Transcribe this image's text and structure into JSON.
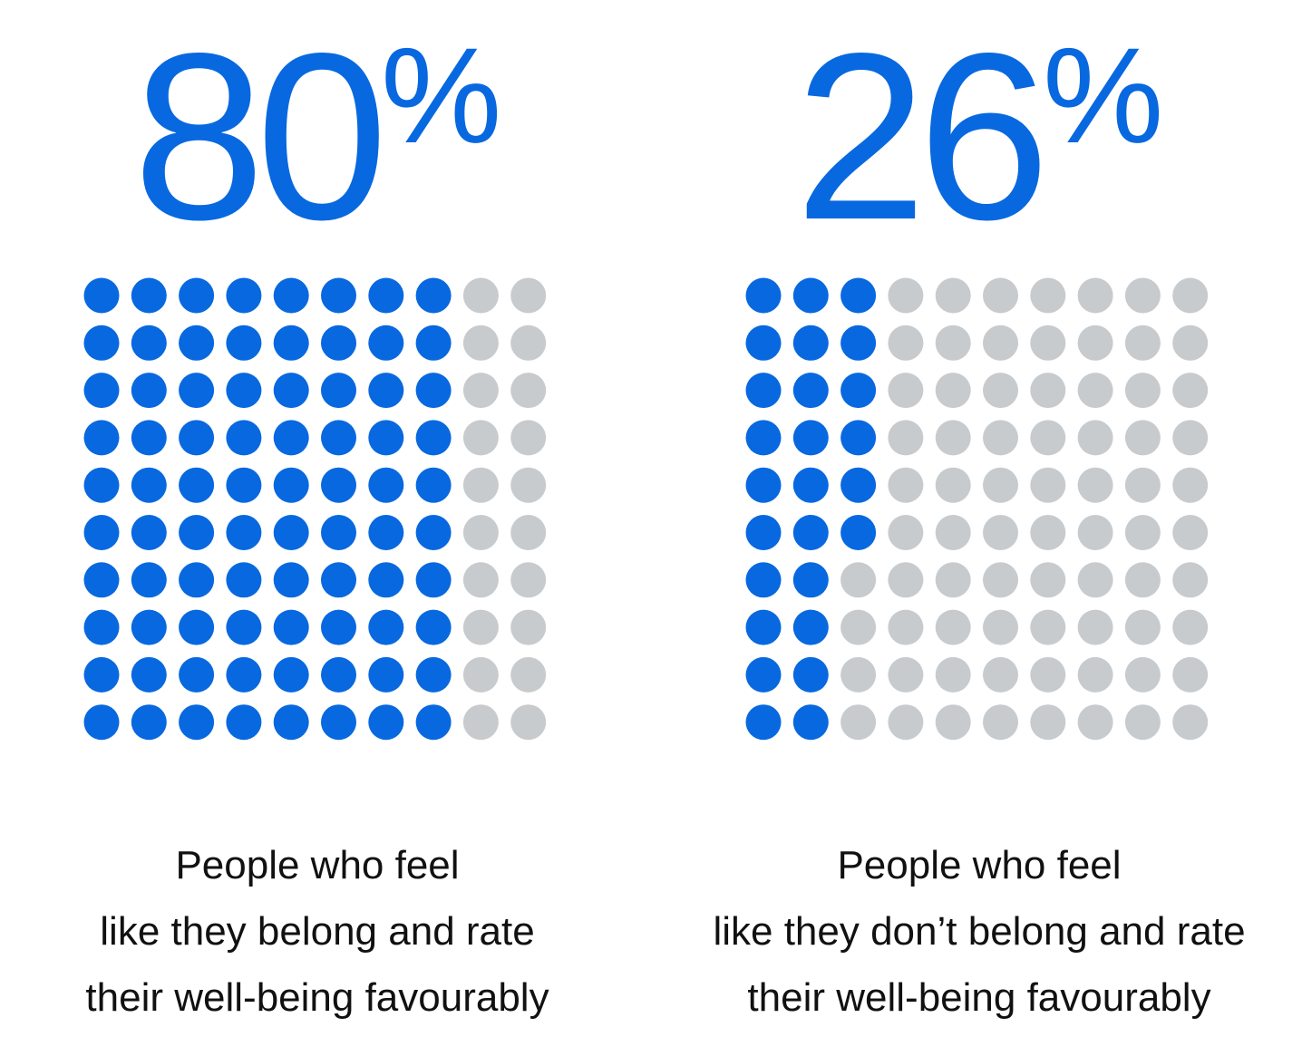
{
  "colors": {
    "accent": "#0868e0",
    "inactive_dot": "#c8cbce",
    "text": "#111111"
  },
  "chart_data": [
    {
      "type": "waffle",
      "value_percent": 80,
      "headline_number": "80",
      "headline_percent_sign": "%",
      "rows": 10,
      "columns": 10,
      "filled_per_row": [
        8,
        8,
        8,
        8,
        8,
        8,
        8,
        8,
        8,
        8
      ],
      "caption_lines": [
        "People who feel",
        "like they belong and rate",
        "their well-being favourably"
      ]
    },
    {
      "type": "waffle",
      "value_percent": 26,
      "headline_number": "26",
      "headline_percent_sign": "%",
      "rows": 10,
      "columns": 10,
      "filled_per_row": [
        3,
        3,
        3,
        3,
        3,
        3,
        2,
        2,
        2,
        2
      ],
      "caption_lines": [
        "People who feel",
        "like they don’t belong and rate",
        "their well-being favourably"
      ]
    }
  ]
}
